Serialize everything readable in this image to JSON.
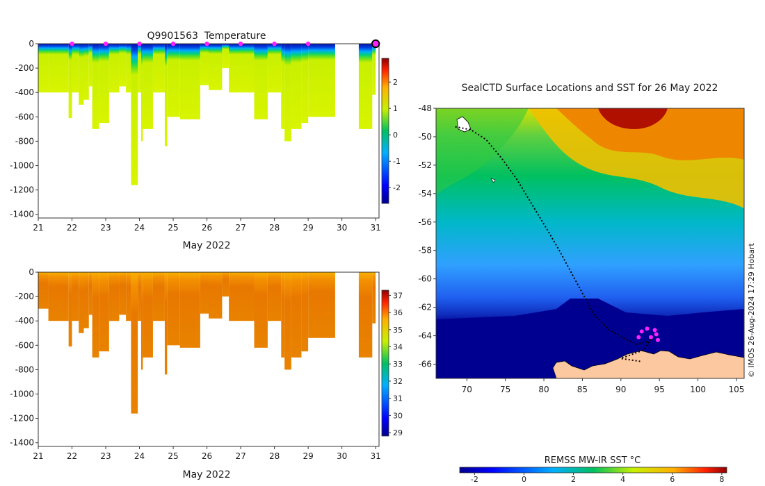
{
  "chart_data": [
    {
      "type": "heatmap",
      "title": "Q9901563  Temperature",
      "xlabel": "May 2022",
      "ylabel": "",
      "x_ticks": [
        "21",
        "22",
        "23",
        "24",
        "25",
        "26",
        "27",
        "28",
        "29",
        "30",
        "31"
      ],
      "xlim": [
        21,
        31.1
      ],
      "y_ticks": [
        "0",
        "-200",
        "-400",
        "-600",
        "-800",
        "-1000",
        "-1200",
        "-1400"
      ],
      "y_tick_values": [
        0,
        -200,
        -400,
        -600,
        -800,
        -1000,
        -1200,
        -1400
      ],
      "ylim": [
        -1430,
        0
      ],
      "colorbar": {
        "ticks": [
          "-2",
          "-1",
          "0",
          "1",
          "2"
        ],
        "tick_values": [
          -2,
          -1,
          0,
          1,
          2
        ],
        "range": [
          -2.6,
          2.9
        ]
      },
      "profile_markers_x": [
        22.0,
        23.0,
        24.0,
        25.0,
        26.0,
        27.0,
        28.0,
        29.0
      ],
      "latest_marker_x": 31.0,
      "profiles": [
        {
          "x0": 21.0,
          "x1": 21.3,
          "depth": 400
        },
        {
          "x0": 21.3,
          "x1": 21.9,
          "depth": 400
        },
        {
          "x0": 21.9,
          "x1": 22.0,
          "depth": 610
        },
        {
          "x0": 22.0,
          "x1": 22.2,
          "depth": 400
        },
        {
          "x0": 22.2,
          "x1": 22.35,
          "depth": 500
        },
        {
          "x0": 22.35,
          "x1": 22.5,
          "depth": 460
        },
        {
          "x0": 22.5,
          "x1": 22.6,
          "depth": 350
        },
        {
          "x0": 22.6,
          "x1": 22.8,
          "depth": 700
        },
        {
          "x0": 22.8,
          "x1": 23.1,
          "depth": 650
        },
        {
          "x0": 23.1,
          "x1": 23.4,
          "depth": 400
        },
        {
          "x0": 23.4,
          "x1": 23.6,
          "depth": 350
        },
        {
          "x0": 23.6,
          "x1": 23.75,
          "depth": 400
        },
        {
          "x0": 23.75,
          "x1": 23.95,
          "depth": 1160
        },
        {
          "x0": 23.95,
          "x1": 24.05,
          "depth": 400
        },
        {
          "x0": 24.05,
          "x1": 24.1,
          "depth": 800
        },
        {
          "x0": 24.1,
          "x1": 24.4,
          "depth": 700
        },
        {
          "x0": 24.4,
          "x1": 24.75,
          "depth": 400
        },
        {
          "x0": 24.75,
          "x1": 24.82,
          "depth": 840
        },
        {
          "x0": 24.82,
          "x1": 25.2,
          "depth": 600
        },
        {
          "x0": 25.2,
          "x1": 25.8,
          "depth": 620
        },
        {
          "x0": 25.8,
          "x1": 26.05,
          "depth": 340
        },
        {
          "x0": 26.05,
          "x1": 26.45,
          "depth": 380
        },
        {
          "x0": 26.45,
          "x1": 26.65,
          "depth": 200
        },
        {
          "x0": 26.65,
          "x1": 27.4,
          "depth": 400
        },
        {
          "x0": 27.4,
          "x1": 27.8,
          "depth": 620
        },
        {
          "x0": 27.8,
          "x1": 28.2,
          "depth": 400
        },
        {
          "x0": 28.2,
          "x1": 28.3,
          "depth": 700
        },
        {
          "x0": 28.3,
          "x1": 28.5,
          "depth": 800
        },
        {
          "x0": 28.5,
          "x1": 28.8,
          "depth": 700
        },
        {
          "x0": 28.8,
          "x1": 29.0,
          "depth": 650
        },
        {
          "x0": 29.0,
          "x1": 29.8,
          "depth": 600
        },
        {
          "x0": 30.5,
          "x1": 30.9,
          "depth": 700
        },
        {
          "x0": 30.9,
          "x1": 31.0,
          "depth": 420
        }
      ]
    },
    {
      "type": "heatmap",
      "title": "",
      "xlabel": "May 2022",
      "ylabel": "",
      "x_ticks": [
        "21",
        "22",
        "23",
        "24",
        "25",
        "26",
        "27",
        "28",
        "29",
        "30",
        "31"
      ],
      "xlim": [
        21,
        31.1
      ],
      "y_ticks": [
        "0",
        "-200",
        "-400",
        "-600",
        "-800",
        "-1000",
        "-1200",
        "-1400"
      ],
      "y_tick_values": [
        0,
        -200,
        -400,
        -600,
        -800,
        -1000,
        -1200,
        -1400
      ],
      "ylim": [
        -1430,
        0
      ],
      "colorbar": {
        "ticks": [
          "29",
          "30",
          "31",
          "32",
          "33",
          "34",
          "35",
          "36",
          "37"
        ],
        "tick_values": [
          29,
          30,
          31,
          32,
          33,
          34,
          35,
          36,
          37
        ],
        "range": [
          28.8,
          37.3
        ]
      },
      "profiles": [
        {
          "x0": 21.0,
          "x1": 21.3,
          "depth": 300
        },
        {
          "x0": 21.3,
          "x1": 21.9,
          "depth": 400
        },
        {
          "x0": 21.9,
          "x1": 22.0,
          "depth": 610
        },
        {
          "x0": 22.0,
          "x1": 22.2,
          "depth": 400
        },
        {
          "x0": 22.2,
          "x1": 22.35,
          "depth": 500
        },
        {
          "x0": 22.35,
          "x1": 22.5,
          "depth": 460
        },
        {
          "x0": 22.5,
          "x1": 22.6,
          "depth": 350
        },
        {
          "x0": 22.6,
          "x1": 22.8,
          "depth": 700
        },
        {
          "x0": 22.8,
          "x1": 23.1,
          "depth": 650
        },
        {
          "x0": 23.1,
          "x1": 23.4,
          "depth": 400
        },
        {
          "x0": 23.4,
          "x1": 23.6,
          "depth": 350
        },
        {
          "x0": 23.6,
          "x1": 23.75,
          "depth": 400
        },
        {
          "x0": 23.75,
          "x1": 23.95,
          "depth": 1160
        },
        {
          "x0": 23.95,
          "x1": 24.05,
          "depth": 400
        },
        {
          "x0": 24.05,
          "x1": 24.1,
          "depth": 800
        },
        {
          "x0": 24.1,
          "x1": 24.4,
          "depth": 700
        },
        {
          "x0": 24.4,
          "x1": 24.75,
          "depth": 400
        },
        {
          "x0": 24.75,
          "x1": 24.82,
          "depth": 840
        },
        {
          "x0": 24.82,
          "x1": 25.2,
          "depth": 600
        },
        {
          "x0": 25.2,
          "x1": 25.8,
          "depth": 620
        },
        {
          "x0": 25.8,
          "x1": 26.05,
          "depth": 340
        },
        {
          "x0": 26.05,
          "x1": 26.45,
          "depth": 380
        },
        {
          "x0": 26.45,
          "x1": 26.65,
          "depth": 200
        },
        {
          "x0": 26.65,
          "x1": 27.4,
          "depth": 400
        },
        {
          "x0": 27.4,
          "x1": 27.8,
          "depth": 620
        },
        {
          "x0": 27.8,
          "x1": 28.2,
          "depth": 400
        },
        {
          "x0": 28.2,
          "x1": 28.3,
          "depth": 700
        },
        {
          "x0": 28.3,
          "x1": 28.5,
          "depth": 800
        },
        {
          "x0": 28.5,
          "x1": 28.8,
          "depth": 700
        },
        {
          "x0": 28.8,
          "x1": 29.0,
          "depth": 650
        },
        {
          "x0": 29.0,
          "x1": 29.8,
          "depth": 540
        },
        {
          "x0": 30.5,
          "x1": 30.9,
          "depth": 700
        },
        {
          "x0": 30.9,
          "x1": 31.0,
          "depth": 420
        }
      ]
    },
    {
      "type": "heatmap",
      "title": "SealCTD Surface Locations and SST for 26 May 2022",
      "xlabel": "",
      "ylabel": "",
      "x_ticks": [
        "70",
        "75",
        "80",
        "85",
        "90",
        "95",
        "100",
        "105"
      ],
      "x_tick_values": [
        70,
        75,
        80,
        85,
        90,
        95,
        100,
        105
      ],
      "xlim": [
        66,
        106
      ],
      "y_ticks": [
        "-48",
        "-50",
        "-52",
        "-54",
        "-56",
        "-58",
        "-60",
        "-62",
        "-64",
        "-66"
      ],
      "y_tick_values": [
        -48,
        -50,
        -52,
        -54,
        -56,
        -58,
        -60,
        -62,
        -64,
        -66
      ],
      "ylim": [
        -67,
        -48
      ],
      "colorbar": {
        "label": "REMSS MW-IR SST °C",
        "ticks": [
          "-2",
          "0",
          "2",
          "4",
          "6",
          "8"
        ],
        "tick_values": [
          -2,
          0,
          2,
          4,
          6,
          8
        ],
        "range": [
          -2.6,
          8.2
        ]
      },
      "colorbar_label": "REMSS MW-IR SST °C",
      "track": [
        [
          68.5,
          -49.3
        ],
        [
          70.5,
          -49.5
        ],
        [
          72.5,
          -50.2
        ],
        [
          74.5,
          -51.5
        ],
        [
          76.5,
          -53.0
        ],
        [
          78.5,
          -54.8
        ],
        [
          80.5,
          -56.6
        ],
        [
          82.0,
          -58.0
        ],
        [
          83.5,
          -59.5
        ],
        [
          85.0,
          -61.0
        ],
        [
          86.5,
          -62.5
        ],
        [
          88.5,
          -63.6
        ],
        [
          90.5,
          -64.2
        ],
        [
          92.0,
          -64.6
        ],
        [
          93.5,
          -64.4
        ],
        [
          94.2,
          -64.0
        ],
        [
          93.0,
          -65.0
        ],
        [
          91.5,
          -65.3
        ],
        [
          90.0,
          -65.6
        ],
        [
          92.5,
          -65.8
        ]
      ],
      "surface_locations": [
        [
          92.7,
          -63.7
        ],
        [
          93.4,
          -63.5
        ],
        [
          94.4,
          -63.6
        ],
        [
          94.6,
          -63.9
        ],
        [
          93.9,
          -64.1
        ],
        [
          94.8,
          -64.3
        ],
        [
          92.3,
          -64.1
        ]
      ]
    }
  ],
  "watermark": "© IMOS 26-Aug-2024 17:29 Hobart"
}
